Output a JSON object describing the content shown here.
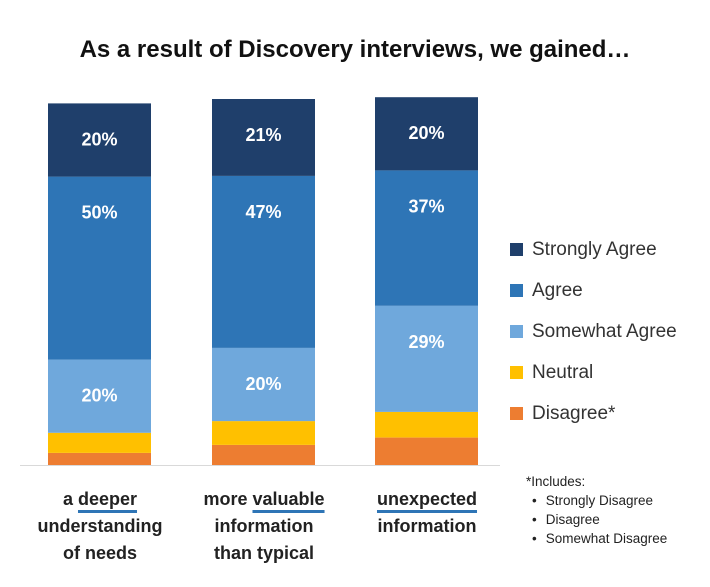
{
  "title": "As a result of Discovery interviews, we gained…",
  "chart_data": {
    "type": "bar",
    "stacked": true,
    "categories": [
      [
        "a ",
        "deeper",
        "understanding",
        "of needs"
      ],
      [
        "more ",
        "valuable",
        "information",
        "than typical"
      ],
      [
        "",
        "unexpected",
        "information",
        ""
      ]
    ],
    "series": [
      {
        "name": "Disagree*",
        "color": "#ed7d31",
        "values": [
          3.3,
          5.5,
          7.5
        ]
      },
      {
        "name": "Neutral",
        "color": "#ffc000",
        "values": [
          5.5,
          6.5,
          7
        ]
      },
      {
        "name": "Somewhat Agree",
        "color": "#6fa8dc",
        "values": [
          20,
          20,
          29
        ],
        "labels": [
          "20%",
          "20%",
          "29%"
        ]
      },
      {
        "name": "Agree",
        "color": "#2e75b6",
        "values": [
          50,
          47,
          37
        ],
        "labels": [
          "50%",
          "47%",
          "37%"
        ]
      },
      {
        "name": "Strongly Agree",
        "color": "#1f3f6b",
        "values": [
          20,
          21,
          20
        ],
        "labels": [
          "20%",
          "21%",
          "20%"
        ]
      }
    ],
    "ylim": [
      0,
      100
    ],
    "grid": false,
    "legend_position": "right"
  },
  "footnote": {
    "title": "*Includes:",
    "items": [
      "Strongly Disagree",
      "Disagree",
      "Somewhat Disagree"
    ]
  }
}
